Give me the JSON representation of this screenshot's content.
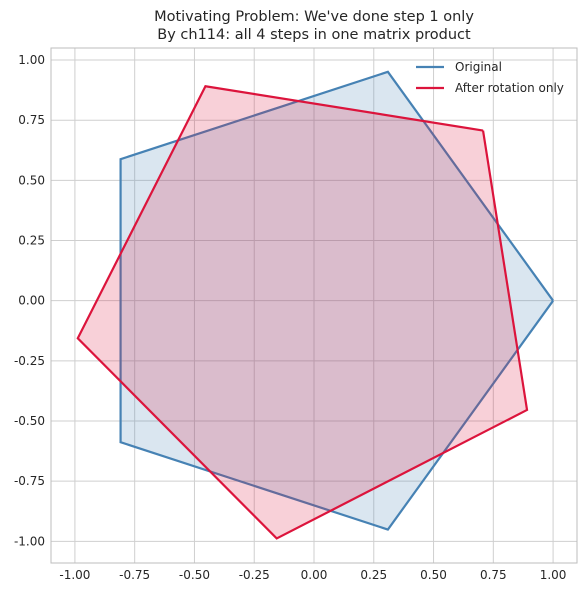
{
  "chart_data": {
    "type": "line",
    "title": [
      "Motivating Problem: We've done step 1 only",
      "By ch114: all 4 steps in one matrix product"
    ],
    "xlabel": "",
    "ylabel": "",
    "xlim": [
      -1.1,
      1.1
    ],
    "ylim": [
      -1.09,
      1.05
    ],
    "xticks": [
      "-1.00",
      "-0.75",
      "-0.50",
      "-0.25",
      "0.00",
      "0.25",
      "0.50",
      "0.75",
      "1.00"
    ],
    "yticks": [
      "-1.00",
      "-0.75",
      "-0.50",
      "-0.25",
      "0.00",
      "0.25",
      "0.50",
      "0.75",
      "1.00"
    ],
    "grid": true,
    "legend_position": "top-right",
    "series": [
      {
        "name": "Original",
        "color": "#4682b4",
        "fill": "#4682b4",
        "fill_opacity": 0.2,
        "points": [
          [
            1.0,
            0.0
          ],
          [
            0.309,
            0.951
          ],
          [
            -0.809,
            0.588
          ],
          [
            -0.809,
            -0.588
          ],
          [
            0.309,
            -0.951
          ],
          [
            1.0,
            0.0
          ]
        ]
      },
      {
        "name": "After rotation only",
        "color": "#dc143c",
        "fill": "#dc143c",
        "fill_opacity": 0.2,
        "points": [
          [
            0.707,
            0.707
          ],
          [
            -0.454,
            0.891
          ],
          [
            -0.988,
            -0.156
          ],
          [
            -0.156,
            -0.988
          ],
          [
            0.891,
            -0.454
          ],
          [
            0.707,
            0.707
          ]
        ]
      }
    ]
  }
}
